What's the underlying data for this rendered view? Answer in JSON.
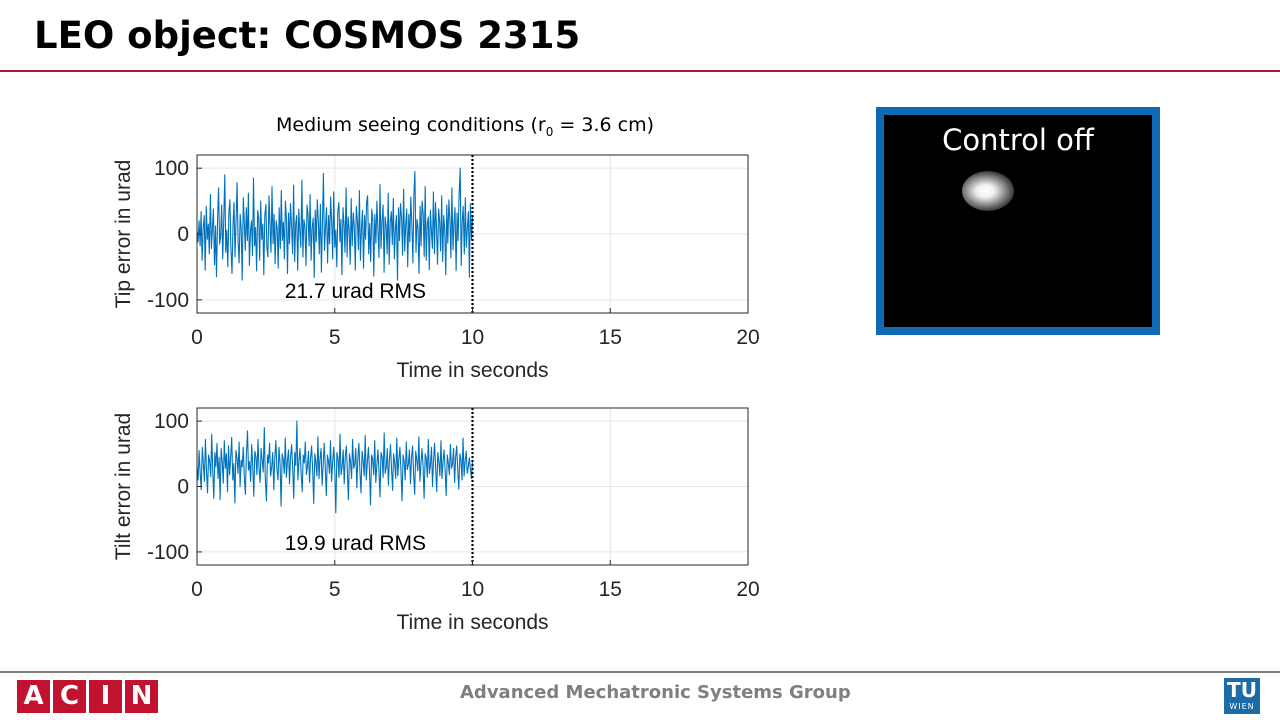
{
  "slide": {
    "title": "LEO object: COSMOS 2315",
    "footer_text": "Advanced Mechatronic Systems Group",
    "acin_letters": [
      "A",
      "C",
      "I",
      "N"
    ],
    "tu_logo_top": "TU",
    "tu_logo_bottom": "WIEN",
    "accent_color": "#a3203a",
    "acin_color": "#c1122f",
    "tu_color": "#1c6ca8"
  },
  "plot_title": {
    "prefix": "Medium seeing conditions (r",
    "subscript": "0",
    "suffix": " = 3.6 cm)"
  },
  "camera": {
    "label": "Control off",
    "frame_color": "#0f69b3"
  },
  "chart_data": [
    {
      "type": "line",
      "xlabel": "Time in seconds",
      "ylabel": "Tip error in urad",
      "xlim": [
        0,
        20
      ],
      "ylim": [
        -120,
        120
      ],
      "xticks": [
        0,
        5,
        10,
        15,
        20
      ],
      "yticks": [
        -100,
        0,
        100
      ],
      "grid": true,
      "annotation": "21.7 urad RMS",
      "marker_line_x": 10,
      "series": [
        {
          "color": "#0072bd",
          "x_range": [
            0,
            10
          ],
          "values": [
            5,
            -12,
            20,
            -18,
            34,
            -40,
            10,
            28,
            -55,
            42,
            -8,
            15,
            -30,
            60,
            -22,
            8,
            38,
            -47,
            12,
            -65,
            25,
            70,
            -15,
            -5,
            44,
            -38,
            18,
            90,
            -28,
            6,
            -50,
            33,
            52,
            -20,
            -60,
            14,
            48,
            -35,
            22,
            78,
            -12,
            -44,
            30,
            8,
            -70,
            55,
            18,
            -25,
            40,
            -10,
            62,
            -48,
            5,
            20,
            -33,
            85,
            -18,
            10,
            -56,
            36,
            24,
            -40,
            50,
            -8,
            15,
            -62,
            28,
            45,
            -20,
            -35,
            58,
            12,
            -28,
            72,
            -15,
            30,
            -45,
            20,
            8,
            -52,
            40,
            -22,
            66,
            -10,
            18,
            -38,
            50,
            25,
            -60,
            32,
            -15,
            46,
            10,
            -30,
            74,
            -42,
            16,
            28,
            -55,
            38,
            5,
            -20,
            82,
            -35,
            22,
            12,
            -48,
            44,
            30,
            -18,
            60,
            -40,
            8,
            24,
            -66,
            36,
            -12,
            52,
            20,
            -30,
            45,
            -58,
            14,
            92,
            -25,
            10,
            40,
            -44,
            28,
            -15,
            56,
            18,
            -38,
            64,
            -20,
            6,
            -50,
            34,
            48,
            -12,
            22,
            -62,
            40,
            15,
            -28,
            70,
            -35,
            26,
            8,
            -46,
            54,
            -18,
            32,
            12,
            -55,
            42,
            20,
            -24,
            66,
            -40,
            10,
            36,
            -52,
            28,
            -8,
            48,
            58,
            -30,
            16,
            -42,
            38,
            22,
            -64,
            30,
            -14,
            50,
            6,
            -36,
            75,
            -22,
            18,
            44,
            -58,
            26,
            12,
            -30,
            62,
            -46,
            20,
            34,
            -16,
            54,
            -38,
            8,
            28,
            -70,
            40,
            -10,
            46,
            24,
            -32,
            68,
            -26,
            14,
            38,
            -50,
            30,
            -12,
            56,
            18,
            -44,
            60,
            95,
            -28,
            22,
            10,
            -60,
            42,
            -18,
            50,
            30,
            -34,
            72,
            -40,
            16,
            26,
            -54,
            36,
            4,
            -22,
            64,
            -30,
            48,
            12,
            -46,
            38,
            20,
            -26,
            58,
            -42,
            28,
            8,
            -62,
            44,
            -14,
            52,
            22,
            -36,
            70,
            -24,
            16,
            40,
            -56,
            32,
            -10,
            60,
            100,
            -48,
            18,
            42,
            -30,
            55,
            -20,
            10,
            34,
            -66,
            46,
            -8,
            26
          ]
        }
      ]
    },
    {
      "type": "line",
      "xlabel": "Time in seconds",
      "ylabel": "Tilt error in urad",
      "xlim": [
        0,
        20
      ],
      "ylim": [
        -120,
        120
      ],
      "xticks": [
        0,
        5,
        10,
        15,
        20
      ],
      "yticks": [
        -100,
        0,
        100
      ],
      "grid": true,
      "annotation": "19.9 urad RMS",
      "marker_line_x": 10,
      "series": [
        {
          "color": "#0072bd",
          "x_range": [
            0,
            10
          ],
          "values": [
            30,
            10,
            55,
            20,
            -5,
            60,
            35,
            8,
            72,
            25,
            -10,
            48,
            40,
            15,
            80,
            22,
            -18,
            52,
            30,
            66,
            12,
            45,
            -20,
            58,
            38,
            5,
            70,
            28,
            50,
            -8,
            62,
            18,
            42,
            75,
            10,
            35,
            -25,
            55,
            44,
            20,
            68,
            0,
            40,
            30,
            60,
            15,
            -12,
            50,
            85,
            25,
            38,
            8,
            64,
            32,
            -15,
            54,
            46,
            18,
            72,
            28,
            6,
            58,
            40,
            22,
            90,
            12,
            -22,
            48,
            36,
            66,
            16,
            30,
            52,
            -5,
            44,
            70,
            26,
            10,
            60,
            34,
            -30,
            50,
            42,
            20,
            74,
            14,
            38,
            56,
            4,
            46,
            64,
            28,
            -18,
            52,
            32,
            100,
            10,
            40,
            58,
            22,
            -8,
            48,
            36,
            68,
            18,
            30,
            54,
            6,
            44,
            62,
            24,
            -26,
            50,
            38,
            16,
            76,
            12,
            42,
            58,
            2,
            34,
            66,
            28,
            -14,
            48,
            40,
            20,
            70,
            8,
            36,
            60,
            26,
            -40,
            52,
            44,
            14,
            80,
            18,
            30,
            56,
            4,
            46,
            62,
            22,
            -20,
            50,
            38,
            12,
            72,
            28,
            34,
            58,
            -2,
            44,
            66,
            20,
            -10,
            54,
            40,
            16,
            78,
            10,
            36,
            60,
            24,
            -28,
            48,
            42,
            18,
            70,
            6,
            32,
            56,
            26,
            -16,
            52,
            46,
            14,
            82,
            20,
            30,
            58,
            2,
            40,
            64,
            28,
            -6,
            50,
            36,
            12,
            74,
            16,
            42,
            60,
            22,
            -22,
            48,
            38,
            10,
            68,
            26,
            34,
            56,
            4,
            44,
            62,
            18,
            -12,
            54,
            40,
            24,
            76,
            8,
            36,
            58,
            30,
            -18,
            50,
            44,
            14,
            72,
            20,
            32,
            60,
            0,
            42,
            66,
            26,
            -8,
            52,
            38,
            16,
            70,
            12,
            40,
            56,
            22,
            -14,
            48,
            36,
            18,
            64,
            28,
            34,
            58,
            6,
            46,
            62,
            24,
            -4,
            50,
            42,
            10,
            74,
            16,
            38,
            54,
            20,
            30,
            44,
            26,
            12,
            40
          ]
        }
      ]
    }
  ]
}
